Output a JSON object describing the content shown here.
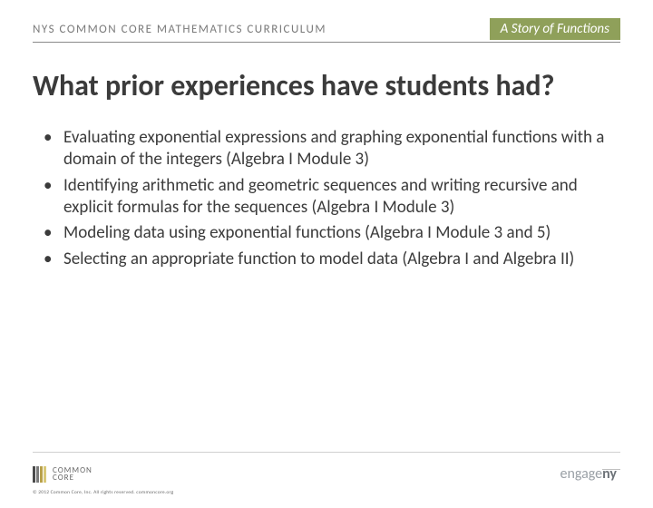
{
  "header": {
    "left": "NYS COMMON CORE MATHEMATICS CURRICULUM",
    "right": "A Story of Functions",
    "right_bg": "#8fa05a",
    "border_color": "#8a8a8a"
  },
  "title": "What prior experiences have students had?",
  "bullets": [
    "Evaluating exponential expressions and graphing exponential functions with a domain of the integers (Algebra I Module 3)",
    "Identifying arithmetic and geometric sequences and writing recursive and explicit formulas for the sequences (Algebra I Module 3)",
    "Modeling data using exponential functions (Algebra I Module 3 and 5)",
    "Selecting an appropriate function to model data (Algebra I and Algebra II)"
  ],
  "footer": {
    "cc_bars": [
      "#4a4a4a",
      "#7a7a7a",
      "#b9a14a",
      "#d8c878"
    ],
    "cc_top": "COMMON",
    "cc_bot": "CORE",
    "copyright": "© 2012 Common Core, Inc. All rights reserved. commoncore.org",
    "engage_part1": "engage",
    "engage_part2": "ny",
    "engage_color1": "#9aa0a6",
    "engage_color2": "#6d7379"
  },
  "colors": {
    "text": "#3b3b3b",
    "header_text": "#7a7a7a",
    "background": "#ffffff"
  },
  "typography": {
    "title_fontsize": 32,
    "body_fontsize": 19,
    "header_fontsize": 13
  }
}
